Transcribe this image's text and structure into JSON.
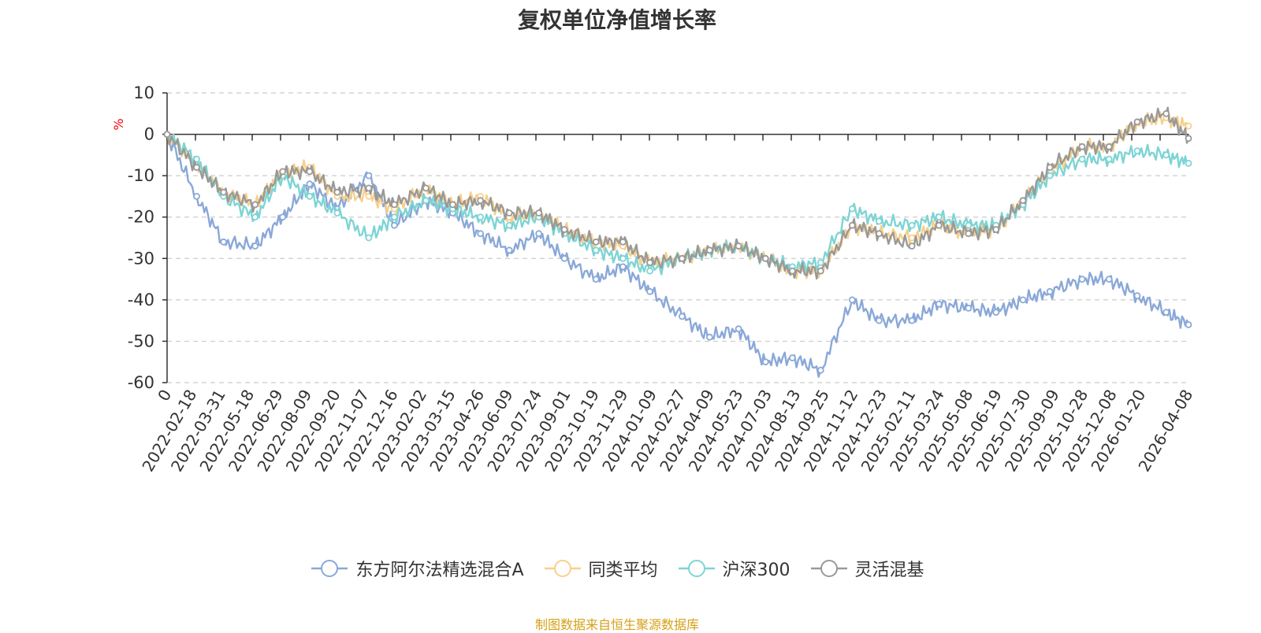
{
  "chart_data": {
    "type": "line",
    "title": "复权单位净值增长率",
    "ylabel": "%",
    "ylim": [
      -60,
      10
    ],
    "yticks": [
      10,
      0,
      -10,
      -20,
      -30,
      -40,
      -50,
      -60
    ],
    "grid": true,
    "legend_position": "bottom",
    "x_tick_labels": [
      "0",
      "2022-02-18",
      "2022-03-31",
      "2022-05-18",
      "2022-06-29",
      "2022-08-09",
      "2022-09-20",
      "2022-11-07",
      "2022-12-16",
      "2023-02-02",
      "2023-03-15",
      "2023-04-26",
      "2023-06-09",
      "2023-07-24",
      "2023-09-01",
      "2023-10-19",
      "2023-11-29",
      "2024-01-09",
      "2024-02-27",
      "2024-04-09",
      "2024-05-23",
      "2024-07-03",
      "2024-08-13",
      "2024-09-25",
      "2024-11-12",
      "2024-12-23",
      "2025-02-11",
      "2025-03-24",
      "2025-05-08",
      "2025-06-19",
      "2025-07-30",
      "2025-09-09",
      "2025-10-28",
      "2025-12-08",
      "2026-01-20",
      "2026-04-08"
    ],
    "x": [
      "2022-01-04",
      "2022-02-18",
      "2022-03-31",
      "2022-05-18",
      "2022-06-29",
      "2022-08-09",
      "2022-09-20",
      "2022-11-07",
      "2022-12-16",
      "2023-02-02",
      "2023-03-15",
      "2023-04-26",
      "2023-06-09",
      "2023-07-24",
      "2023-09-01",
      "2023-10-19",
      "2023-11-29",
      "2024-01-09",
      "2024-02-27",
      "2024-04-09",
      "2024-05-23",
      "2024-07-03",
      "2024-08-13",
      "2024-09-25",
      "2024-11-12",
      "2024-12-23",
      "2025-02-11",
      "2025-03-24",
      "2025-05-08",
      "2025-06-19",
      "2025-07-30",
      "2025-09-09",
      "2025-10-28",
      "2025-12-08",
      "2026-01-20",
      "2026-03-05",
      "2026-04-08"
    ],
    "series": [
      {
        "name": "东方阿尔法精选混合A",
        "color": "#8aa8d8",
        "values": [
          0,
          -15,
          -26,
          -27,
          -20,
          -12,
          -18,
          -10,
          -22,
          -16,
          -19,
          -24,
          -28,
          -24,
          -30,
          -35,
          -32,
          -38,
          -44,
          -49,
          -47,
          -55,
          -54,
          -57,
          -40,
          -45,
          -45,
          -41,
          -42,
          -43,
          -40,
          -38,
          -35,
          -35,
          -39,
          -43,
          -46
        ]
      },
      {
        "name": "同类平均",
        "color": "#f8d08a",
        "values": [
          0,
          -7,
          -14,
          -17,
          -9,
          -8,
          -15,
          -15,
          -18,
          -13,
          -17,
          -15,
          -20,
          -19,
          -23,
          -26,
          -27,
          -31,
          -30,
          -28,
          -27,
          -30,
          -33,
          -33,
          -22,
          -24,
          -25,
          -22,
          -24,
          -23,
          -16,
          -9,
          -3,
          -3,
          3,
          4,
          2
        ]
      },
      {
        "name": "沪深300",
        "color": "#7ed4d4",
        "values": [
          0,
          -6,
          -15,
          -20,
          -10,
          -15,
          -19,
          -25,
          -20,
          -16,
          -18,
          -20,
          -22,
          -20,
          -24,
          -28,
          -30,
          -33,
          -30,
          -28,
          -27,
          -30,
          -32,
          -31,
          -18,
          -21,
          -22,
          -20,
          -22,
          -22,
          -17,
          -10,
          -6,
          -6,
          -4,
          -5,
          -7
        ]
      },
      {
        "name": "灵活混基",
        "color": "#999999",
        "values": [
          0,
          -8,
          -14,
          -17,
          -9,
          -9,
          -14,
          -13,
          -17,
          -13,
          -17,
          -16,
          -19,
          -19,
          -23,
          -26,
          -26,
          -31,
          -30,
          -28,
          -27,
          -30,
          -33,
          -33,
          -22,
          -24,
          -27,
          -22,
          -24,
          -23,
          -16,
          -8,
          -3,
          -3,
          3,
          5,
          -1
        ]
      }
    ]
  },
  "footnote": "制图数据来自恒生聚源数据库"
}
